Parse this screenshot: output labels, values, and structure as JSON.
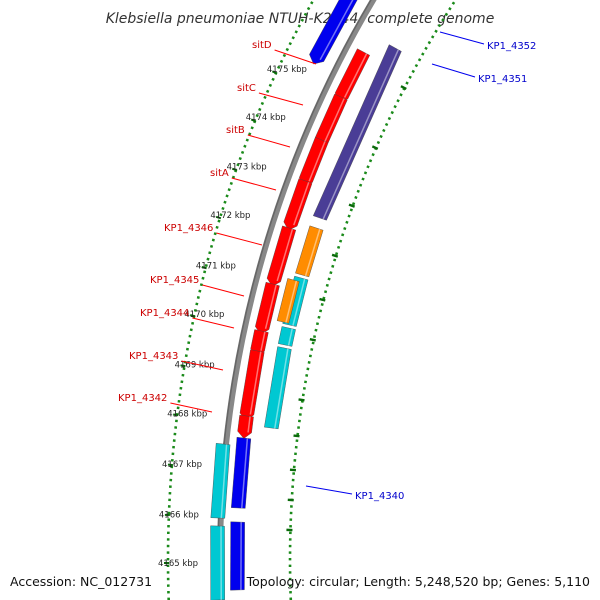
{
  "title": "Klebsiella pneumoniae NTUH-K2044, complete genome",
  "footer": {
    "accession": "Accession: NC_012731",
    "topology": "Topology: circular; Length: 5,248,520 bp; Genes: 5,110"
  },
  "colors": {
    "backbone": "#888888",
    "backbone_dark": "#666666",
    "dotted_track": "#1a8a1a",
    "feature_red": "#ff0000",
    "feature_purple": "#4a3d96",
    "feature_orange": "#ff8c00",
    "feature_cyan": "#00c8d2",
    "feature_blue": "#0000ee",
    "label_red": "#cc0000",
    "label_blue": "#0000cc"
  },
  "ticks": [
    {
      "label": "4175 kbp"
    },
    {
      "label": "4174 kbp"
    },
    {
      "label": "4173 kbp"
    },
    {
      "label": "4172 kbp"
    },
    {
      "label": "4171 kbp"
    },
    {
      "label": "4170 kbp"
    },
    {
      "label": "4169 kbp"
    },
    {
      "label": "4168 kbp"
    },
    {
      "label": "4167 kbp"
    },
    {
      "label": "4166 kbp"
    },
    {
      "label": "4165 kbp"
    }
  ],
  "left_labels": [
    {
      "text": "sitD",
      "color": "label_red"
    },
    {
      "text": "sitC",
      "color": "label_red"
    },
    {
      "text": "sitB",
      "color": "label_red"
    },
    {
      "text": "sitA",
      "color": "label_red"
    },
    {
      "text": "KP1_4346",
      "color": "label_red"
    },
    {
      "text": "KP1_4345",
      "color": "label_red"
    },
    {
      "text": "KP1_4344",
      "color": "label_red"
    },
    {
      "text": "KP1_4343",
      "color": "label_red"
    },
    {
      "text": "KP1_4342",
      "color": "label_red"
    }
  ],
  "right_labels": [
    {
      "text": "KP1_4352",
      "color": "label_blue"
    },
    {
      "text": "KP1_4351",
      "color": "label_blue"
    },
    {
      "text": "KP1_4340",
      "color": "label_blue"
    }
  ]
}
